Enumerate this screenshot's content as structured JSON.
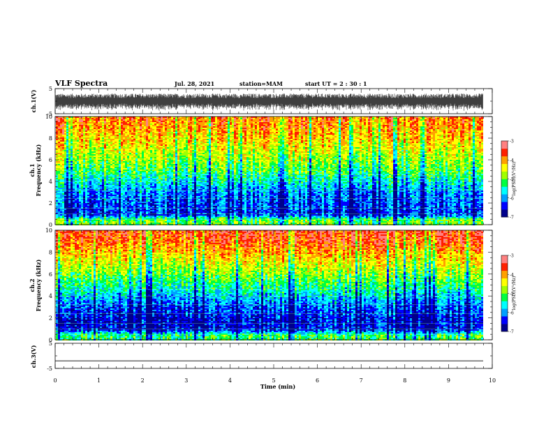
{
  "header": {
    "title": "VLF Spectra",
    "date": "Jul. 28, 2021",
    "station": "station=MAM",
    "start": "start UT =  2 : 30 : 1"
  },
  "colors": {
    "spectrum": [
      "#00008b",
      "#0000ff",
      "#00a0ff",
      "#00ffff",
      "#00ff40",
      "#a0ff00",
      "#ffff00",
      "#ffa000",
      "#ff2000",
      "#ff8080"
    ]
  },
  "chart_data": [
    {
      "type": "line",
      "panel": "ch1-waveform",
      "ylabel": "ch.1(V)",
      "ylim": [
        -5,
        5
      ],
      "yticks": [
        "5",
        "-5"
      ],
      "xlim": [
        0,
        10
      ],
      "description_values": {
        "approx_amplitude_range": [
          -2.5,
          2.5
        ],
        "mean": 0
      }
    },
    {
      "type": "heatmap",
      "panel": "ch1-spectrogram",
      "ylabel_channel": "ch.1",
      "ylabel": "Frequency (kHz)",
      "ylim": [
        0,
        10
      ],
      "yticks": [
        "0",
        "2",
        "4",
        "6",
        "8",
        "10"
      ],
      "xlim": [
        0,
        10
      ],
      "colorbar": {
        "label": "log(PSD)(V²/Hz)",
        "range": [
          -7,
          -3
        ],
        "ticks": [
          "-3",
          "-4",
          "-5",
          "-6",
          "-7"
        ]
      },
      "frequency_profile_kHz": [
        0.5,
        1,
        2,
        3,
        4,
        5,
        6,
        7,
        8,
        9,
        10
      ],
      "log_psd_profile": [
        -5.0,
        -6.3,
        -6.2,
        -6.0,
        -5.6,
        -5.1,
        -4.8,
        -4.5,
        -4.2,
        -4.0,
        -3.8
      ]
    },
    {
      "type": "heatmap",
      "panel": "ch2-spectrogram",
      "ylabel_channel": "ch.2",
      "ylabel": "Frequency (kHz)",
      "ylim": [
        0,
        10
      ],
      "yticks": [
        "0",
        "2",
        "4",
        "6",
        "8",
        "10"
      ],
      "xlim": [
        0,
        10
      ],
      "colorbar": {
        "label": "log(PSD)(V²/Hz)",
        "range": [
          -7,
          -3
        ],
        "ticks": [
          "-3",
          "-4",
          "-5",
          "-6",
          "-7"
        ]
      },
      "frequency_profile_kHz": [
        0.5,
        1,
        2,
        3,
        4,
        5,
        6,
        7,
        8,
        9,
        10
      ],
      "log_psd_profile": [
        -5.2,
        -6.5,
        -6.5,
        -6.2,
        -5.8,
        -5.3,
        -4.9,
        -4.5,
        -4.1,
        -3.7,
        -3.5
      ]
    },
    {
      "type": "line",
      "panel": "ch3-waveform",
      "ylabel": "ch.3(V)",
      "ylim": [
        -5,
        5
      ],
      "yticks": [
        "5",
        "-5"
      ],
      "xlim": [
        0,
        10
      ],
      "description_values": {
        "constant_value": -2
      }
    }
  ],
  "xaxis": {
    "label": "Time (min)",
    "ticks": [
      "0",
      "1",
      "2",
      "3",
      "4",
      "5",
      "6",
      "7",
      "8",
      "9",
      "10"
    ]
  }
}
